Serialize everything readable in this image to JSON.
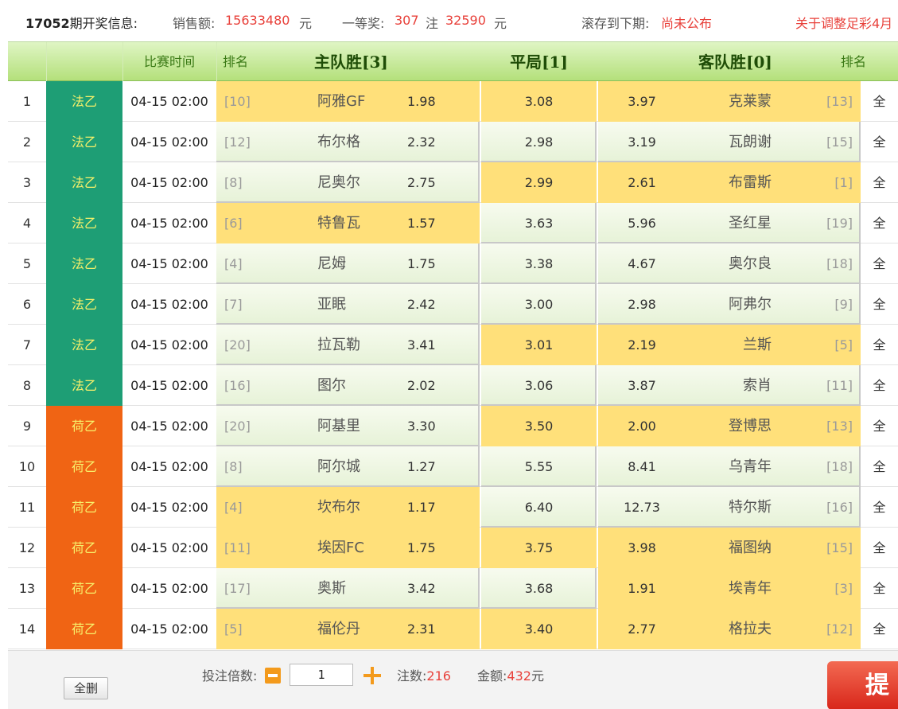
{
  "info": {
    "issue": "17052",
    "issue_label": "期开奖信息:",
    "sales_label": "销售额:",
    "sales_value": "15633480",
    "sales_unit": "元",
    "first_prize_label": "一等奖:",
    "first_prize_count": "307",
    "first_prize_count_unit": "注",
    "first_prize_amount": "32590",
    "first_prize_amount_unit": "元",
    "rollover_label": "滚存到下期:",
    "rollover_value": "尚未公布",
    "notice_link": "关于调整足彩4月"
  },
  "header": {
    "time_col": "比赛时间",
    "rank_col_left": "排名",
    "home_win": "主队胜[3]",
    "draw": "平局[1]",
    "away_win": "客队胜[0]",
    "rank_col_right": "排名"
  },
  "colors": {
    "ligue2": "#1e9e75",
    "eerste": "#f06414",
    "selected": "#ffe07a",
    "accent_red": "#e8403a"
  },
  "matches": [
    {
      "no": "1",
      "league": "法乙",
      "league_type": "ligue2",
      "time": "04-15 02:00",
      "home_rank": "[10]",
      "home": "阿雅GF",
      "home_odds": "1.98",
      "draw_odds": "3.08",
      "away_odds": "3.97",
      "away": "克莱蒙",
      "away_rank": "[13]",
      "all": "全",
      "sel": [
        1,
        1,
        1
      ]
    },
    {
      "no": "2",
      "league": "法乙",
      "league_type": "ligue2",
      "time": "04-15 02:00",
      "home_rank": "[12]",
      "home": "布尔格",
      "home_odds": "2.32",
      "draw_odds": "2.98",
      "away_odds": "3.19",
      "away": "瓦朗谢",
      "away_rank": "[15]",
      "all": "全",
      "sel": [
        0,
        0,
        0
      ]
    },
    {
      "no": "3",
      "league": "法乙",
      "league_type": "ligue2",
      "time": "04-15 02:00",
      "home_rank": "[8]",
      "home": "尼奥尔",
      "home_odds": "2.75",
      "draw_odds": "2.99",
      "away_odds": "2.61",
      "away": "布雷斯",
      "away_rank": "[1]",
      "all": "全",
      "sel": [
        0,
        1,
        1
      ]
    },
    {
      "no": "4",
      "league": "法乙",
      "league_type": "ligue2",
      "time": "04-15 02:00",
      "home_rank": "[6]",
      "home": "特鲁瓦",
      "home_odds": "1.57",
      "draw_odds": "3.63",
      "away_odds": "5.96",
      "away": "圣红星",
      "away_rank": "[19]",
      "all": "全",
      "sel": [
        1,
        0,
        0
      ]
    },
    {
      "no": "5",
      "league": "法乙",
      "league_type": "ligue2",
      "time": "04-15 02:00",
      "home_rank": "[4]",
      "home": "尼姆",
      "home_odds": "1.75",
      "draw_odds": "3.38",
      "away_odds": "4.67",
      "away": "奥尔良",
      "away_rank": "[18]",
      "all": "全",
      "sel": [
        0,
        0,
        0
      ]
    },
    {
      "no": "6",
      "league": "法乙",
      "league_type": "ligue2",
      "time": "04-15 02:00",
      "home_rank": "[7]",
      "home": "亚眠",
      "home_odds": "2.42",
      "draw_odds": "3.00",
      "away_odds": "2.98",
      "away": "阿弗尔",
      "away_rank": "[9]",
      "all": "全",
      "sel": [
        0,
        0,
        0
      ]
    },
    {
      "no": "7",
      "league": "法乙",
      "league_type": "ligue2",
      "time": "04-15 02:00",
      "home_rank": "[20]",
      "home": "拉瓦勒",
      "home_odds": "3.41",
      "draw_odds": "3.01",
      "away_odds": "2.19",
      "away": "兰斯",
      "away_rank": "[5]",
      "all": "全",
      "sel": [
        0,
        1,
        1
      ]
    },
    {
      "no": "8",
      "league": "法乙",
      "league_type": "ligue2",
      "time": "04-15 02:00",
      "home_rank": "[16]",
      "home": "图尔",
      "home_odds": "2.02",
      "draw_odds": "3.06",
      "away_odds": "3.87",
      "away": "索肖",
      "away_rank": "[11]",
      "all": "全",
      "sel": [
        0,
        0,
        0
      ]
    },
    {
      "no": "9",
      "league": "荷乙",
      "league_type": "eerste",
      "time": "04-15 02:00",
      "home_rank": "[20]",
      "home": "阿基里",
      "home_odds": "3.30",
      "draw_odds": "3.50",
      "away_odds": "2.00",
      "away": "登博思",
      "away_rank": "[13]",
      "all": "全",
      "sel": [
        0,
        1,
        1
      ]
    },
    {
      "no": "10",
      "league": "荷乙",
      "league_type": "eerste",
      "time": "04-15 02:00",
      "home_rank": "[8]",
      "home": "阿尔城",
      "home_odds": "1.27",
      "draw_odds": "5.55",
      "away_odds": "8.41",
      "away": "乌青年",
      "away_rank": "[18]",
      "all": "全",
      "sel": [
        0,
        0,
        0
      ]
    },
    {
      "no": "11",
      "league": "荷乙",
      "league_type": "eerste",
      "time": "04-15 02:00",
      "home_rank": "[4]",
      "home": "坎布尔",
      "home_odds": "1.17",
      "draw_odds": "6.40",
      "away_odds": "12.73",
      "away": "特尔斯",
      "away_rank": "[16]",
      "all": "全",
      "sel": [
        1,
        0,
        0
      ]
    },
    {
      "no": "12",
      "league": "荷乙",
      "league_type": "eerste",
      "time": "04-15 02:00",
      "home_rank": "[11]",
      "home": "埃因FC",
      "home_odds": "1.75",
      "draw_odds": "3.75",
      "away_odds": "3.98",
      "away": "福图纳",
      "away_rank": "[15]",
      "all": "全",
      "sel": [
        1,
        1,
        1
      ]
    },
    {
      "no": "13",
      "league": "荷乙",
      "league_type": "eerste",
      "time": "04-15 02:00",
      "home_rank": "[17]",
      "home": "奥斯",
      "home_odds": "3.42",
      "draw_odds": "3.68",
      "away_odds": "1.91",
      "away": "埃青年",
      "away_rank": "[3]",
      "all": "全",
      "sel": [
        0,
        0,
        1
      ]
    },
    {
      "no": "14",
      "league": "荷乙",
      "league_type": "eerste",
      "time": "04-15 02:00",
      "home_rank": "[5]",
      "home": "福伦丹",
      "home_odds": "2.31",
      "draw_odds": "3.40",
      "away_odds": "2.77",
      "away": "格拉夫",
      "away_rank": "[12]",
      "all": "全",
      "sel": [
        1,
        1,
        1
      ]
    }
  ],
  "footer": {
    "clear_all": "全删",
    "multiplier_label": "投注倍数:",
    "multiplier_value": "1",
    "bets_label": "注数:",
    "bets_value": "216",
    "amount_label": "金额:",
    "amount_value": "432",
    "amount_unit": "元",
    "submit": "提"
  }
}
